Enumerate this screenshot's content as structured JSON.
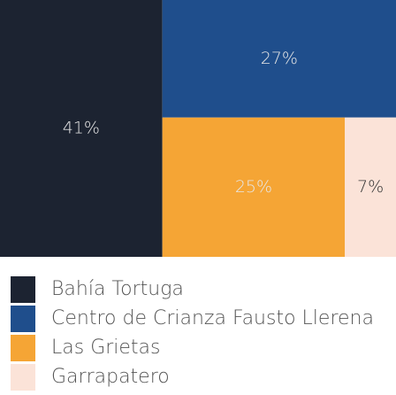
{
  "chart_data": {
    "type": "treemap",
    "categories": [
      "Bahía Tortuga",
      "Centro de Crianza Fausto Llerena",
      "Las Grietas",
      "Garrapatero"
    ],
    "values": [
      41,
      27,
      25,
      7
    ],
    "value_labels": [
      "41%",
      "27%",
      "25%",
      "7%"
    ],
    "colors": [
      "#1c2331",
      "#1f4e8c",
      "#f5a535",
      "#fbe3d8"
    ],
    "legend": "bottom-left"
  }
}
